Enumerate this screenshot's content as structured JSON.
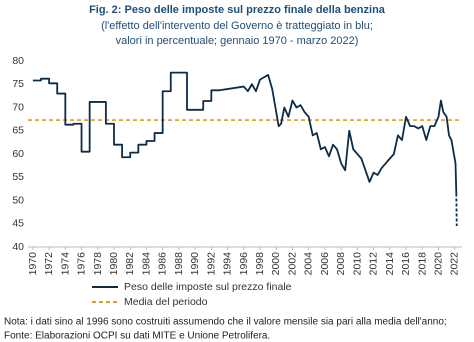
{
  "chart_data": {
    "type": "line",
    "title": "Fig. 2: Peso delle imposte sul prezzo finale della benzina",
    "subtitle": [
      "(l'effetto dell'intervento del Governo è tratteggiato in blu;",
      "valori in percentuale; gennaio 1970 - marzo 2022)"
    ],
    "xlim": [
      1969.4,
      2022.9
    ],
    "xticks": [
      1970,
      1972,
      1974,
      1976,
      1978,
      1980,
      1982,
      1984,
      1986,
      1988,
      1990,
      1992,
      1994,
      1996,
      1998,
      2000,
      2002,
      2004,
      2006,
      2008,
      2010,
      2012,
      2014,
      2016,
      2018,
      2020,
      2022
    ],
    "ylim": [
      40,
      80
    ],
    "yticks": [
      40,
      45,
      50,
      55,
      60,
      65,
      70,
      75,
      80
    ],
    "grid": false,
    "series": [
      {
        "name": "Peso delle imposte sul prezzo finale",
        "color": "#0d2c47",
        "x": [
          1970,
          1971,
          1971,
          1972,
          1972,
          1973,
          1973,
          1974,
          1974,
          1975,
          1975,
          1976,
          1976,
          1977,
          1977,
          1979,
          1979,
          1980,
          1980,
          1981,
          1981,
          1982,
          1982,
          1983,
          1983,
          1984,
          1984,
          1985,
          1985,
          1986,
          1986,
          1987,
          1987,
          1989,
          1989,
          1990,
          1990,
          1991,
          1991,
          1992,
          1992,
          1993,
          1993,
          1996,
          1996.5,
          1997,
          1997.5,
          1998,
          1998.5,
          1999,
          1999.5,
          2000,
          2000.3,
          2000.6,
          2001,
          2001.5,
          2002,
          2002.5,
          2003,
          2003.5,
          2004,
          2004.5,
          2005,
          2005.5,
          2006,
          2006.5,
          2007,
          2007.5,
          2008,
          2008.5,
          2009,
          2009.5,
          2010,
          2010.5,
          2011,
          2011.5,
          2012,
          2012.5,
          2013,
          2013.5,
          2014,
          2014.5,
          2015,
          2015.5,
          2016,
          2016.5,
          2017,
          2017.5,
          2018,
          2018.5,
          2019,
          2019.5,
          2020,
          2020.3,
          2020.6,
          2021,
          2021.3,
          2021.6,
          2021.9,
          2022.1,
          2022.2
        ],
        "values": [
          75.8,
          75.8,
          76.2,
          76.2,
          75.2,
          75.2,
          73,
          73,
          66.3,
          66.3,
          66.5,
          66.5,
          60.5,
          60.5,
          71.2,
          71.2,
          66.5,
          66.5,
          62,
          62,
          59.3,
          59.3,
          60.3,
          60.3,
          62,
          62,
          62.8,
          62.8,
          64.5,
          64.5,
          73.5,
          73.5,
          77.5,
          77.5,
          69.5,
          69.5,
          69.5,
          69.5,
          71.4,
          71.4,
          73.7,
          73.7,
          73.7,
          74.5,
          73.5,
          75,
          73.5,
          76,
          76.5,
          77,
          74,
          69,
          66,
          66.5,
          70,
          68,
          71.5,
          70,
          70.5,
          69,
          68,
          64,
          64.5,
          61,
          61.5,
          59.5,
          62,
          61,
          58,
          56.5,
          65,
          61,
          60,
          59,
          56.5,
          54,
          56,
          55.5,
          57,
          58,
          59,
          60,
          64,
          63,
          68,
          66,
          66,
          65.5,
          66,
          63,
          66,
          66,
          68,
          71.5,
          69,
          68,
          64,
          63,
          60,
          58,
          51.5
        ]
      },
      {
        "color": "#0d2c47",
        "dash": true,
        "x": [
          2022.2,
          2022.25
        ],
        "values": [
          51.5,
          44.5
        ]
      }
    ],
    "reference": {
      "name": "Media del periodo",
      "value": 67.3,
      "color": "#d9a21b"
    },
    "notes": [
      "Nota: i dati sino al 1996 sono costruiti assumendo che il valore mensile sia pari alla media dell'anno;",
      "Fonte: Elaborazioni OCPI su dati MITE e Unione Petrolifera."
    ]
  }
}
